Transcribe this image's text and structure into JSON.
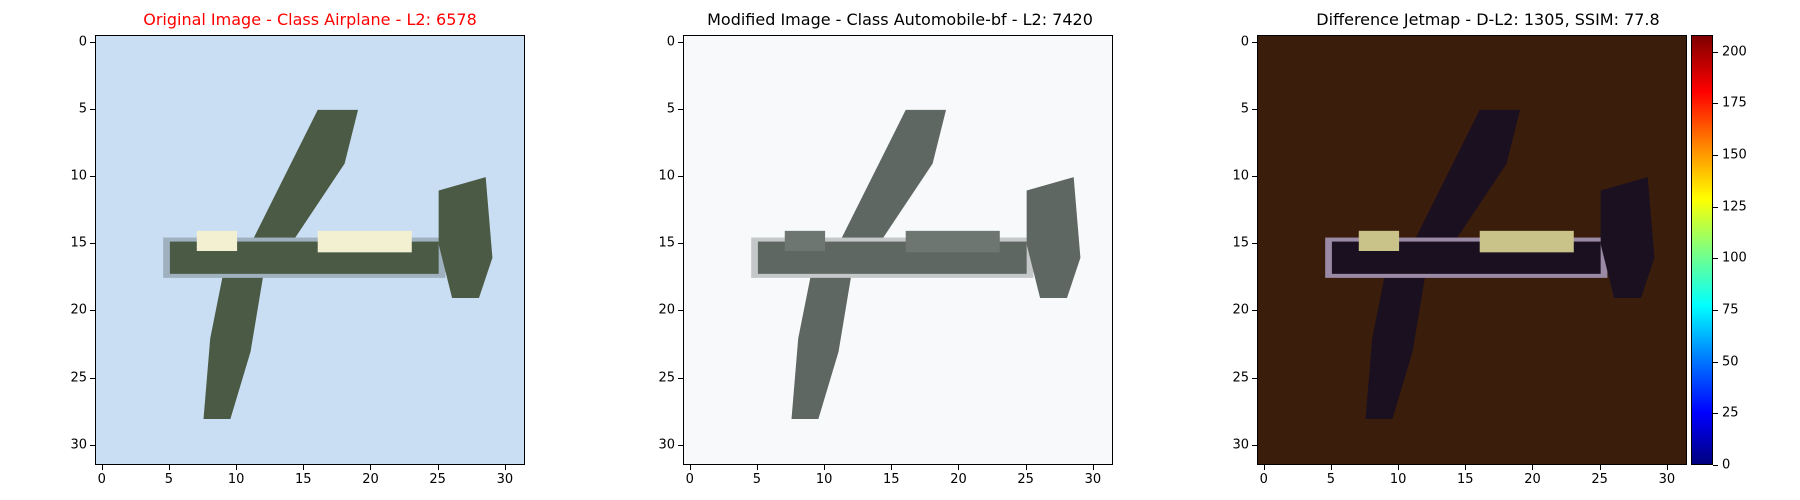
{
  "panels": [
    {
      "title": "Original Image - Class Airplane - L2: 6578",
      "title_color": "#ff0000",
      "background": "#c9def2",
      "body_color": "#4a5a45",
      "highlight_color": "#f3f0d2",
      "edge_color": "#9fb0bf"
    },
    {
      "title": "Modified Image - Class Automobile-bf - L2: 7420",
      "title_color": "#000000",
      "background": "#f7f9fa",
      "body_color": "#5f6763",
      "highlight_color": "#6e7672",
      "edge_color": "#c4c8c8"
    },
    {
      "title": "Difference Jetmap - D-L2: 1305, SSIM: 77.8",
      "title_color": "#000000",
      "background": "#3b1d0c",
      "body_color": "#1a1020",
      "highlight_color": "#c9c38a",
      "edge_color": "#9a8aa6"
    }
  ],
  "axis_ticks": [
    "0",
    "5",
    "10",
    "15",
    "20",
    "25",
    "30"
  ],
  "colorbar_ticks": [
    "0",
    "25",
    "50",
    "75",
    "100",
    "125",
    "150",
    "175",
    "200"
  ],
  "colorbar_max": 208
}
